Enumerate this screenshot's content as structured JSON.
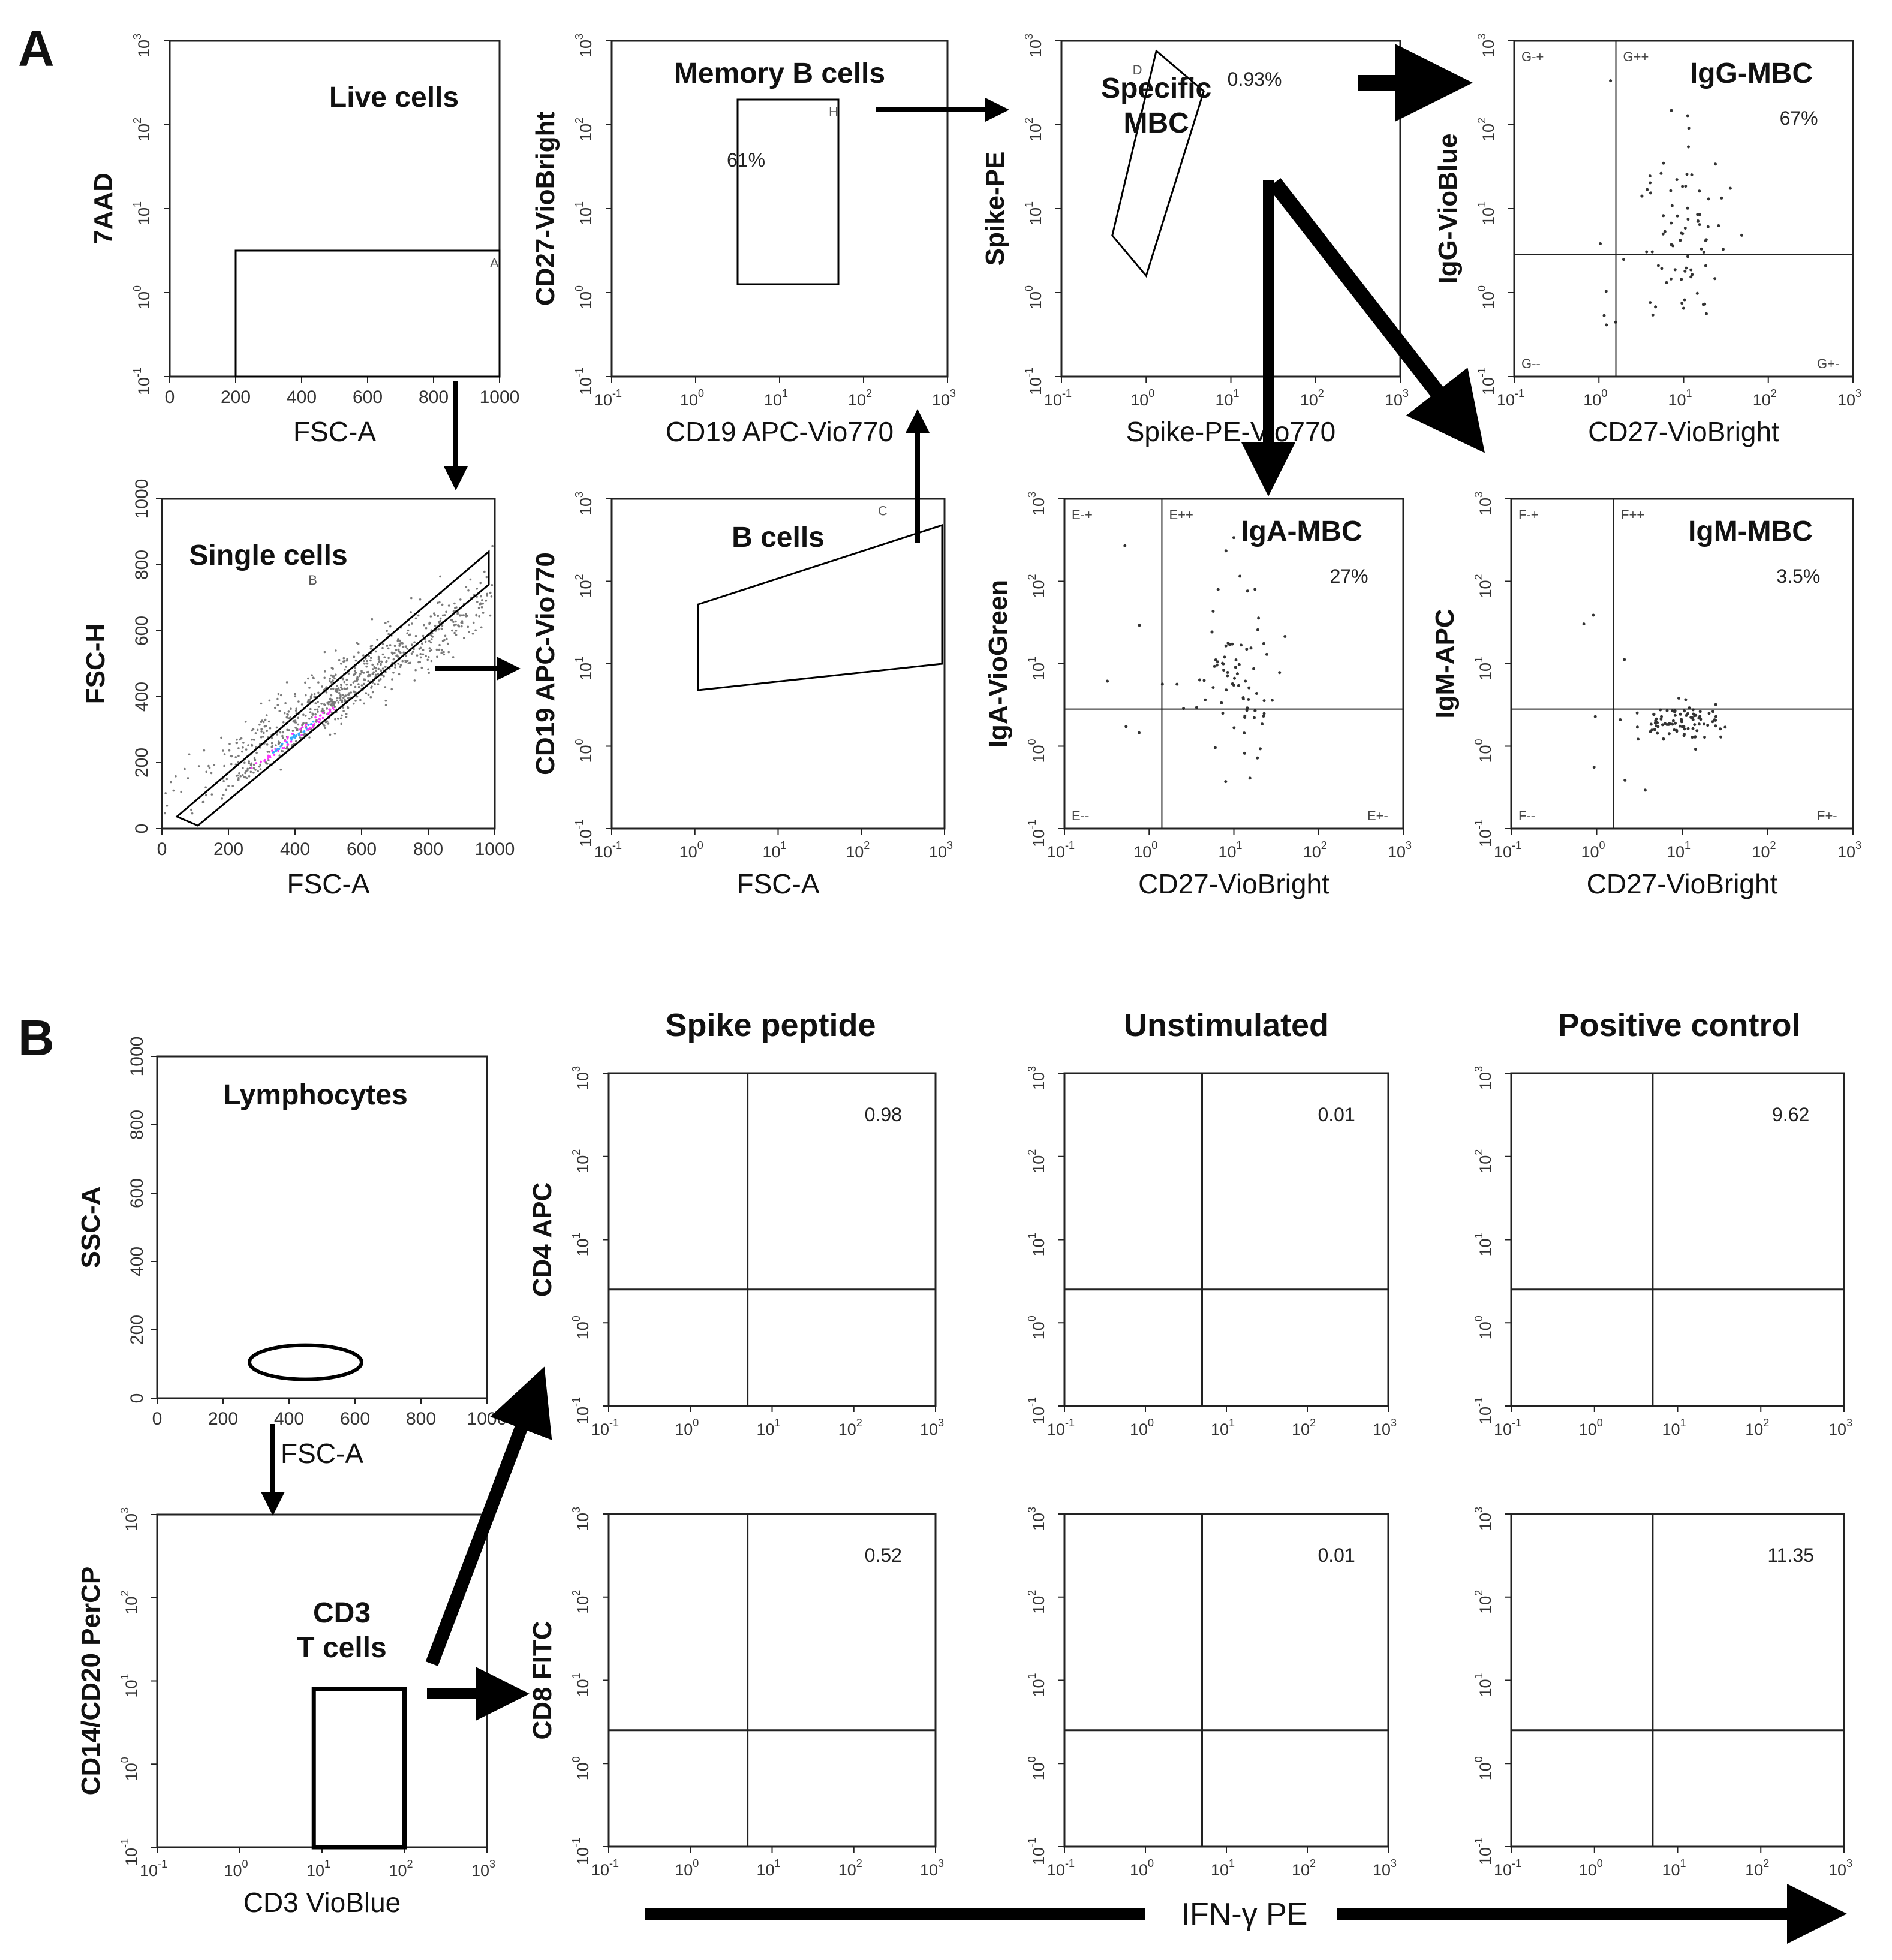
{
  "panel_labels": {
    "a": "A",
    "b": "B"
  },
  "colors": {
    "background_events": "#7a7a7a",
    "mid_density": "#ff33ff",
    "high_density": "#33aaff",
    "peak_density": "#33ff66",
    "gate": "#000000",
    "text": "#111111"
  },
  "headers_b": [
    "Spike peptide",
    "Unstimulated",
    "Positive control"
  ],
  "bottom_axis_label": "IFN-γ PE",
  "chart_data": [
    {
      "id": "live",
      "type": "scatter",
      "title": "Live cells",
      "xlabel": "FSC-A",
      "ylabel": "7AAD",
      "xscale": "linear",
      "xlim": [
        0,
        1000
      ],
      "xticks": [
        "0",
        "200",
        "400",
        "600",
        "800",
        "1000"
      ],
      "yscale": "log",
      "ylim": [
        -1,
        3
      ],
      "gate_type": "rectangle",
      "gate_label": "A",
      "gate": {
        "x": [
          200,
          1000
        ],
        "y": [
          -1,
          0.5
        ]
      }
    },
    {
      "id": "single",
      "type": "scatter",
      "title": "Single cells",
      "xlabel": "FSC-A",
      "ylabel": "FSC-H",
      "xscale": "linear",
      "xlim": [
        0,
        1000
      ],
      "xticks": [
        "0",
        "200",
        "400",
        "600",
        "800",
        "1000"
      ],
      "yscale": "linear",
      "ylim": [
        0,
        1000
      ],
      "yticks": [
        "0",
        "200",
        "400",
        "600",
        "800",
        "1000"
      ],
      "gate_type": "diagonal",
      "gate_label": "B"
    },
    {
      "id": "bcells",
      "type": "scatter",
      "title": "B cells",
      "xlabel": "FSC-A",
      "ylabel": "CD19 APC-Vio770",
      "xscale": "log",
      "xlim": [
        -1,
        3
      ],
      "yscale": "log",
      "ylim": [
        -1,
        3
      ],
      "gate_type": "trapezoid",
      "gate_label": "C"
    },
    {
      "id": "memory",
      "type": "scatter",
      "title": "Memory B cells",
      "xlabel": "CD19 APC-Vio770",
      "ylabel": "CD27-VioBright",
      "xscale": "log",
      "xlim": [
        -1,
        3
      ],
      "yscale": "log",
      "ylim": [
        -1,
        3
      ],
      "gate_type": "rectangle",
      "gate_label": "H",
      "percent": "61%",
      "gate": {
        "x": [
          0.5,
          1.7
        ],
        "y": [
          0.1,
          2.3
        ]
      }
    },
    {
      "id": "specific",
      "type": "scatter",
      "title": "Specific\nMBC",
      "xlabel": "Spike-PE-Vio770",
      "ylabel": "Spike-PE",
      "xscale": "log",
      "xlim": [
        -1,
        3
      ],
      "yscale": "log",
      "ylim": [
        -1,
        3
      ],
      "gate_type": "polygon",
      "gate_label": "D",
      "percent": "0.93%"
    },
    {
      "id": "igg",
      "type": "scatter",
      "title": "IgG-MBC",
      "xlabel": "CD27-VioBright",
      "ylabel": "IgG-VioBlue",
      "xscale": "log",
      "xlim": [
        -1,
        3
      ],
      "yscale": "log",
      "ylim": [
        -1,
        3
      ],
      "gate_type": "quadrant",
      "quadrant": {
        "x": 0.2,
        "y": 0.45
      },
      "quad_labels": [
        "G-+",
        "G++",
        "G--",
        "G+-"
      ],
      "percent": "67%"
    },
    {
      "id": "iga",
      "type": "scatter",
      "title": "IgA-MBC",
      "xlabel": "CD27-VioBright",
      "ylabel": "IgA-VioGreen",
      "xscale": "log",
      "xlim": [
        -1,
        3
      ],
      "yscale": "log",
      "ylim": [
        -1,
        3
      ],
      "gate_type": "quadrant",
      "quadrant": {
        "x": 0.15,
        "y": 0.45
      },
      "quad_labels": [
        "E-+",
        "E++",
        "E--",
        "E+-"
      ],
      "percent": "27%"
    },
    {
      "id": "igm",
      "type": "scatter",
      "title": "IgM-MBC",
      "xlabel": "CD27-VioBright",
      "ylabel": "IgM-APC",
      "xscale": "log",
      "xlim": [
        -1,
        3
      ],
      "yscale": "log",
      "ylim": [
        -1,
        3
      ],
      "gate_type": "quadrant",
      "quadrant": {
        "x": 0.2,
        "y": 0.45
      },
      "quad_labels": [
        "F-+",
        "F++",
        "F--",
        "F+-"
      ],
      "percent": "3.5%"
    },
    {
      "id": "lympho",
      "type": "scatter",
      "title": "Lymphocytes",
      "xlabel": "FSC-A",
      "ylabel": "SSC-A",
      "xscale": "linear",
      "xlim": [
        0,
        1000
      ],
      "xticks": [
        "0",
        "200",
        "400",
        "600",
        "800",
        "1000"
      ],
      "yscale": "linear",
      "ylim": [
        0,
        1000
      ],
      "yticks": [
        "0",
        "200",
        "400",
        "600",
        "800",
        "1000"
      ],
      "gate_type": "ellipse"
    },
    {
      "id": "cd3",
      "type": "scatter",
      "title": "CD3\nT cells",
      "xlabel": "CD3 VioBlue",
      "ylabel": "CD14/CD20 PerCP",
      "xscale": "log",
      "xlim": [
        -1,
        3
      ],
      "yscale": "log",
      "ylim": [
        -1,
        3
      ],
      "gate_type": "rectangle",
      "gate": {
        "x": [
          0.9,
          2.0
        ],
        "y": [
          -1,
          0.9
        ]
      }
    },
    {
      "id": "cd4_spike",
      "type": "scatter",
      "ylabel": "CD4 APC",
      "xscale": "log",
      "xlim": [
        -1,
        3
      ],
      "yscale": "log",
      "ylim": [
        -1,
        3
      ],
      "gate_type": "quadrant",
      "quadrant": {
        "x": 0.7,
        "y": 0.4
      },
      "value": "0.98"
    },
    {
      "id": "cd4_unstim",
      "type": "scatter",
      "xscale": "log",
      "xlim": [
        -1,
        3
      ],
      "yscale": "log",
      "ylim": [
        -1,
        3
      ],
      "gate_type": "quadrant",
      "quadrant": {
        "x": 0.7,
        "y": 0.4
      },
      "value": "0.01"
    },
    {
      "id": "cd4_pos",
      "type": "scatter",
      "xscale": "log",
      "xlim": [
        -1,
        3
      ],
      "yscale": "log",
      "ylim": [
        -1,
        3
      ],
      "gate_type": "quadrant",
      "quadrant": {
        "x": 0.7,
        "y": 0.4
      },
      "value": "9.62"
    },
    {
      "id": "cd8_spike",
      "type": "scatter",
      "ylabel": "CD8 FITC",
      "xscale": "log",
      "xlim": [
        -1,
        3
      ],
      "yscale": "log",
      "ylim": [
        -1,
        3
      ],
      "gate_type": "quadrant",
      "quadrant": {
        "x": 0.7,
        "y": 0.4
      },
      "value": "0.52"
    },
    {
      "id": "cd8_unstim",
      "type": "scatter",
      "xscale": "log",
      "xlim": [
        -1,
        3
      ],
      "yscale": "log",
      "ylim": [
        -1,
        3
      ],
      "gate_type": "quadrant",
      "quadrant": {
        "x": 0.7,
        "y": 0.4
      },
      "value": "0.01"
    },
    {
      "id": "cd8_pos",
      "type": "scatter",
      "xscale": "log",
      "xlim": [
        -1,
        3
      ],
      "yscale": "log",
      "ylim": [
        -1,
        3
      ],
      "gate_type": "quadrant",
      "quadrant": {
        "x": 0.7,
        "y": 0.4
      },
      "value": "11.35"
    }
  ]
}
